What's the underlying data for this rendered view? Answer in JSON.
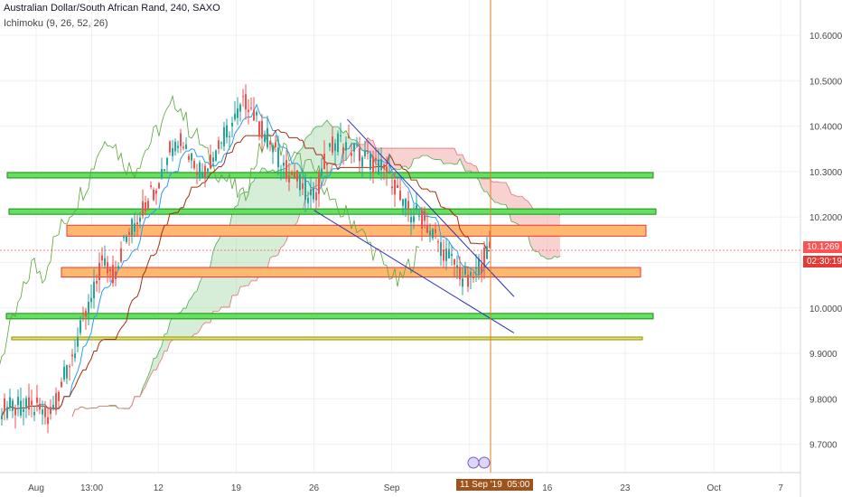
{
  "header": {
    "title": "Australian Dollar/South African Rand, 240, SAXO",
    "indicator": "Ichimoku (9, 26, 52, 26)"
  },
  "price_tag": {
    "value": "10.1269",
    "countdown": "02:30:19",
    "color": "#ff5252",
    "countdown_color": "#e53935"
  },
  "cursor_tag": {
    "date": "11 Sep '19",
    "time": "05:00",
    "color": "#a0521b"
  },
  "colors": {
    "up": "#26a69a",
    "down": "#ef5350",
    "green_zone": "#66e060",
    "orange_zone": "#ffb870",
    "trendline": "#2734b8",
    "conversion": "#2a9df4",
    "base": "#a03010",
    "lagging": "#5aa53a",
    "cloud_bull": "#a5d6a7",
    "cloud_bear": "#ef9a9a"
  },
  "chart_data": {
    "type": "candlestick",
    "title": "Australian Dollar/South African Rand, 240, SAXO",
    "ylim": [
      9.65,
      10.69
    ],
    "y_ticks": [
      "10.6000",
      "10.5000",
      "10.4000",
      "10.3000",
      "10.2000",
      "10.1000",
      "10.0000",
      "9.9000",
      "9.8000",
      "9.7000"
    ],
    "x_ticks": [
      "Aug",
      "13:00",
      "12",
      "19",
      "26",
      "Sep",
      "9",
      "16",
      "23",
      "Oct",
      "7"
    ],
    "last_price": 10.1269,
    "zones": [
      {
        "color": "green",
        "low": 10.286,
        "high": 10.298
      },
      {
        "color": "green",
        "low": 10.206,
        "high": 10.218
      },
      {
        "color": "orange",
        "low": 10.158,
        "high": 10.182
      },
      {
        "color": "orange",
        "low": 10.068,
        "high": 10.089
      },
      {
        "color": "green",
        "low": 9.976,
        "high": 9.988
      },
      {
        "color": "yellow-green",
        "low": 9.93,
        "high": 9.936
      }
    ],
    "trendlines": [
      {
        "from": [
          "Aug 29",
          10.415
        ],
        "to": [
          "Sep 13",
          10.025
        ]
      },
      {
        "from": [
          "Aug 26",
          10.215
        ],
        "to": [
          "Sep 13",
          9.945
        ]
      }
    ],
    "price_path": [
      [
        "Aug 1",
        9.78
      ],
      [
        "Aug 2",
        9.76
      ],
      [
        "Aug 3",
        9.81
      ],
      [
        "Aug 5",
        9.95
      ],
      [
        "Aug 6",
        10.02
      ],
      [
        "Aug 7",
        10.1
      ],
      [
        "Aug 8",
        10.07
      ],
      [
        "Aug 9",
        10.15
      ],
      [
        "Aug 12",
        10.28
      ],
      [
        "Aug 13",
        10.35
      ],
      [
        "Aug 14",
        10.38
      ],
      [
        "Aug 15",
        10.33
      ],
      [
        "Aug 16",
        10.3
      ],
      [
        "Aug 19",
        10.42
      ],
      [
        "Aug 20",
        10.46
      ],
      [
        "Aug 21",
        10.4
      ],
      [
        "Aug 22",
        10.37
      ],
      [
        "Aug 23",
        10.32
      ],
      [
        "Aug 26",
        10.24
      ],
      [
        "Aug 27",
        10.32
      ],
      [
        "Aug 28",
        10.37
      ],
      [
        "Aug 29",
        10.36
      ],
      [
        "Aug 30",
        10.34
      ],
      [
        "Sep 2",
        10.29
      ],
      [
        "Sep 3",
        10.22
      ],
      [
        "Sep 4",
        10.21
      ],
      [
        "Sep 5",
        10.19
      ],
      [
        "Sep 6",
        10.15
      ],
      [
        "Sep 9",
        10.05
      ],
      [
        "Sep 10",
        10.1
      ],
      [
        "Sep 11",
        10.1269
      ]
    ]
  }
}
